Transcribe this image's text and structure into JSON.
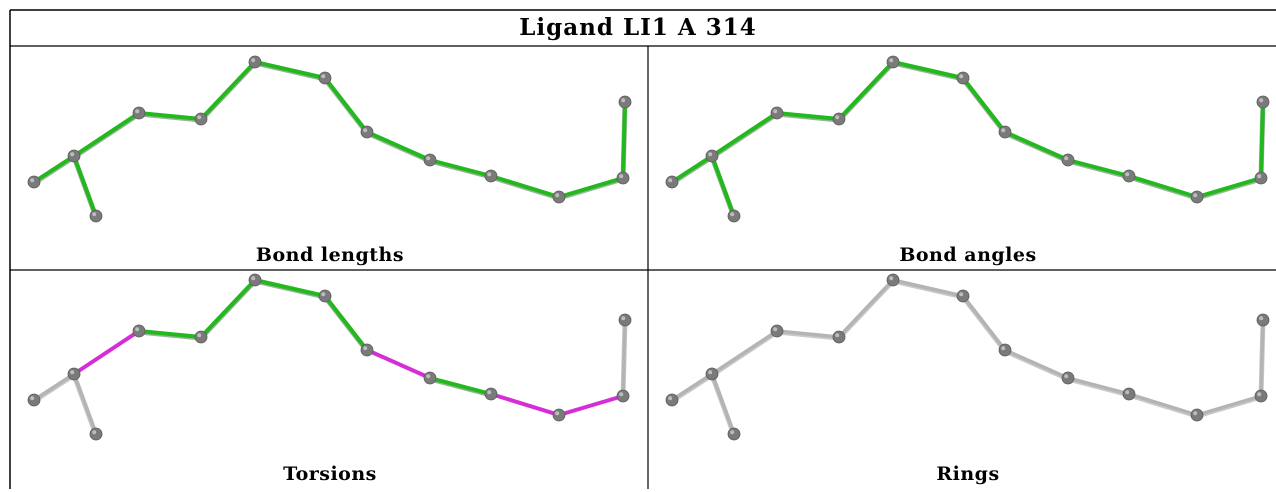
{
  "title": "Ligand LI1 A 314",
  "panels": [
    {
      "caption": "Bond lengths",
      "style": "lengths"
    },
    {
      "caption": "Bond angles",
      "style": "angles"
    },
    {
      "caption": "Torsions",
      "style": "torsions"
    },
    {
      "caption": "Rings",
      "style": "rings"
    }
  ],
  "colors": {
    "good": "#22b81e",
    "outlier": "#d62ed6",
    "neutral": "#b4b4b4",
    "atom": "#7a7a7a"
  }
}
